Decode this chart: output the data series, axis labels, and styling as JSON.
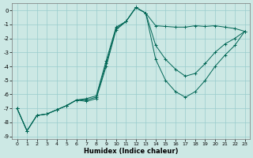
{
  "xlabel": "Humidex (Indice chaleur)",
  "bg_color": "#cce8e4",
  "grid_color": "#99cccc",
  "line_color": "#006655",
  "marker": "+",
  "xlim": [
    -0.5,
    23.5
  ],
  "ylim": [
    -9.2,
    0.5
  ],
  "yticks": [
    0,
    -1,
    -2,
    -3,
    -4,
    -5,
    -6,
    -7,
    -8,
    -9
  ],
  "xticks": [
    0,
    1,
    2,
    3,
    4,
    5,
    6,
    7,
    8,
    9,
    10,
    11,
    12,
    13,
    14,
    15,
    16,
    17,
    18,
    19,
    20,
    21,
    22,
    23
  ],
  "line1_x": [
    0,
    1,
    2,
    3,
    4,
    5,
    6,
    7,
    8,
    9,
    10,
    11,
    12,
    13,
    14,
    15,
    16,
    17,
    18,
    19,
    20,
    21,
    22,
    23
  ],
  "line1_y": [
    -7.0,
    -8.6,
    -7.5,
    -7.4,
    -7.1,
    -6.8,
    -6.4,
    -6.3,
    -6.1,
    -3.6,
    -1.2,
    -0.8,
    0.2,
    -0.2,
    -1.1,
    -1.15,
    -1.2,
    -1.2,
    -1.1,
    -1.15,
    -1.1,
    -1.2,
    -1.3,
    -1.5
  ],
  "line2_x": [
    0,
    1,
    2,
    3,
    4,
    5,
    6,
    7,
    8,
    9,
    10,
    11,
    12,
    13,
    14,
    15,
    16,
    17,
    18,
    19,
    20,
    21,
    22,
    23
  ],
  "line2_y": [
    -7.0,
    -8.6,
    -7.5,
    -7.4,
    -7.1,
    -6.8,
    -6.4,
    -6.4,
    -6.2,
    -3.8,
    -1.3,
    -0.8,
    0.2,
    -0.2,
    -2.5,
    -3.5,
    -4.2,
    -4.7,
    -4.5,
    -3.8,
    -3.0,
    -2.4,
    -2.0,
    -1.5
  ],
  "line3_x": [
    0,
    1,
    2,
    3,
    4,
    5,
    6,
    7,
    8,
    9,
    10,
    11,
    12,
    13,
    14,
    15,
    16,
    17,
    18,
    19,
    20,
    21,
    22,
    23
  ],
  "line3_y": [
    -7.0,
    -8.6,
    -7.5,
    -7.4,
    -7.1,
    -6.8,
    -6.4,
    -6.5,
    -6.3,
    -4.0,
    -1.4,
    -0.8,
    0.2,
    -0.2,
    -3.5,
    -5.0,
    -5.8,
    -6.2,
    -5.8,
    -5.0,
    -4.0,
    -3.2,
    -2.5,
    -1.5
  ]
}
